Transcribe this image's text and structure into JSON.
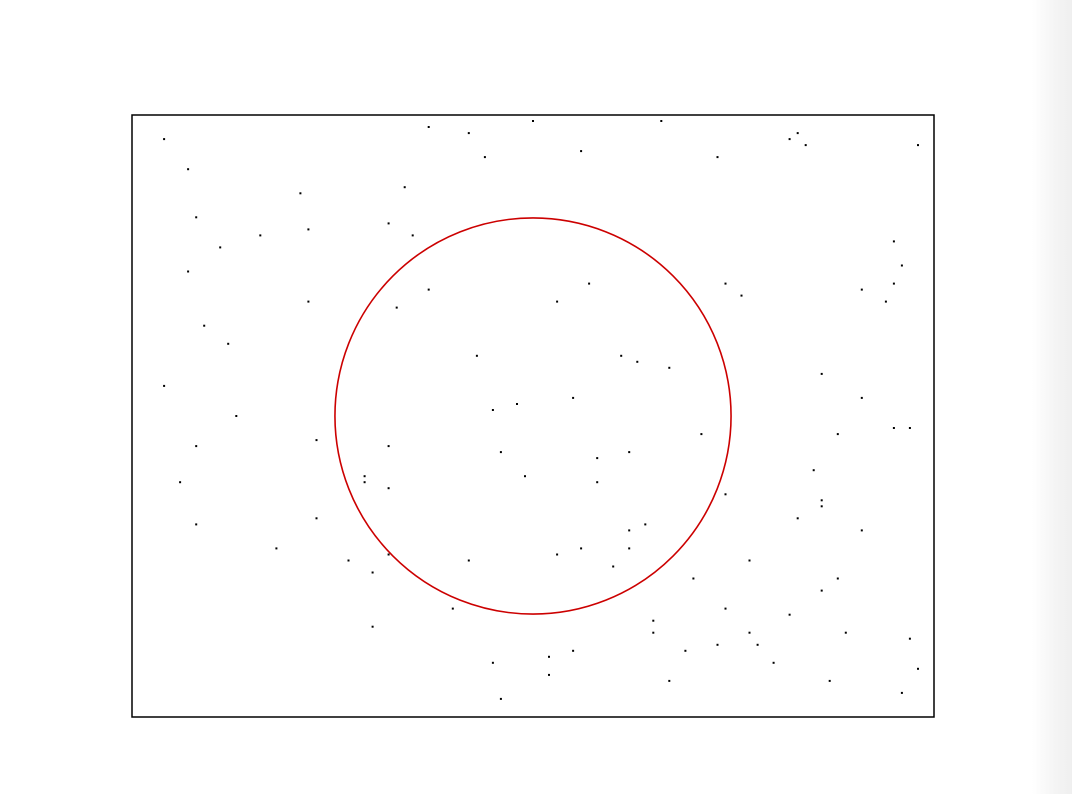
{
  "chart_data": {
    "type": "scatter",
    "title": "",
    "xlabel": "",
    "ylabel": "",
    "xlim": [
      0,
      1
    ],
    "ylim": [
      0,
      1
    ],
    "grid": false,
    "legend": "none",
    "colors": {
      "points": "#000000",
      "circle": "#cc0000",
      "frame": "#000000"
    },
    "circle": {
      "center": [
        0.5,
        0.5
      ],
      "radius": 0.329,
      "color": "#cc0000"
    },
    "series": [
      {
        "x": [
          0.04,
          0.07,
          0.08,
          0.11,
          0.21,
          0.22,
          0.35,
          0.37,
          0.42,
          0.44,
          0.5,
          0.56,
          0.66,
          0.73,
          0.82,
          0.83,
          0.84,
          0.98,
          0.07,
          0.16,
          0.33,
          0.37,
          0.53,
          0.57,
          0.74,
          0.76,
          0.95,
          0.96,
          0.95,
          0.91,
          0.04,
          0.09,
          0.12,
          0.22,
          0.32,
          0.34,
          0.45,
          0.55,
          0.61,
          0.67,
          0.94,
          0.86,
          0.08,
          0.13,
          0.23,
          0.29,
          0.32,
          0.43,
          0.48,
          0.58,
          0.62,
          0.63,
          0.71,
          0.85,
          0.88,
          0.91,
          0.97,
          0.06,
          0.08,
          0.23,
          0.29,
          0.32,
          0.46,
          0.49,
          0.58,
          0.62,
          0.74,
          0.83,
          0.86,
          0.95,
          0.18,
          0.27,
          0.3,
          0.32,
          0.42,
          0.53,
          0.56,
          0.6,
          0.62,
          0.64,
          0.65,
          0.7,
          0.74,
          0.77,
          0.82,
          0.3,
          0.4,
          0.45,
          0.52,
          0.55,
          0.65,
          0.69,
          0.77,
          0.78,
          0.8,
          0.87,
          0.96,
          0.98,
          0.86,
          0.91,
          0.46,
          0.52,
          0.67,
          0.73,
          0.86,
          0.88,
          0.89,
          0.97
        ],
        "y": [
          0.96,
          0.91,
          0.83,
          0.78,
          0.87,
          0.81,
          0.8,
          0.98,
          0.97,
          0.93,
          0.99,
          0.94,
          0.99,
          0.93,
          0.96,
          0.97,
          0.95,
          0.95,
          0.74,
          0.8,
          0.68,
          0.71,
          0.69,
          0.72,
          0.72,
          0.7,
          0.79,
          0.75,
          0.72,
          0.71,
          0.55,
          0.65,
          0.62,
          0.69,
          0.82,
          0.88,
          0.51,
          0.53,
          0.6,
          0.58,
          0.69,
          0.57,
          0.45,
          0.5,
          0.46,
          0.4,
          0.45,
          0.6,
          0.52,
          0.43,
          0.44,
          0.59,
          0.47,
          0.41,
          0.47,
          0.53,
          0.48,
          0.39,
          0.32,
          0.33,
          0.39,
          0.38,
          0.44,
          0.4,
          0.39,
          0.31,
          0.37,
          0.33,
          0.35,
          0.48,
          0.28,
          0.26,
          0.24,
          0.27,
          0.26,
          0.27,
          0.28,
          0.25,
          0.28,
          0.32,
          0.14,
          0.23,
          0.18,
          0.26,
          0.17,
          0.15,
          0.18,
          0.09,
          0.1,
          0.11,
          0.16,
          0.11,
          0.14,
          0.12,
          0.09,
          0.06,
          0.04,
          0.08,
          0.36,
          0.31,
          0.03,
          0.07,
          0.06,
          0.12,
          0.21,
          0.23,
          0.14,
          0.13
        ]
      }
    ]
  }
}
